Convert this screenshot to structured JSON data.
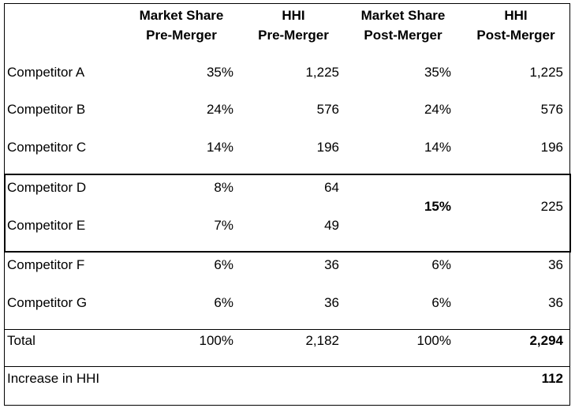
{
  "headers": [
    {
      "line1": "Market Share",
      "line2": "Pre-Merger"
    },
    {
      "line1": "HHI",
      "line2": "Pre-Merger"
    },
    {
      "line1": "Market Share",
      "line2": "Post-Merger"
    },
    {
      "line1": "HHI",
      "line2": "Post-Merger"
    }
  ],
  "rows": {
    "a": {
      "name": "Competitor A",
      "ms_pre": "35%",
      "hhi_pre": "1,225",
      "ms_post": "35%",
      "hhi_post": "1,225"
    },
    "b": {
      "name": "Competitor B",
      "ms_pre": "24%",
      "hhi_pre": "576",
      "ms_post": "24%",
      "hhi_post": "576"
    },
    "c": {
      "name": "Competitor C",
      "ms_pre": "14%",
      "hhi_pre": "196",
      "ms_post": "14%",
      "hhi_post": "196"
    },
    "d": {
      "name": "Competitor D",
      "ms_pre": "8%",
      "hhi_pre": "64"
    },
    "e": {
      "name": "Competitor E",
      "ms_pre": "7%",
      "hhi_pre": "49"
    },
    "de_merged": {
      "ms_post": "15%",
      "hhi_post": "225"
    },
    "f": {
      "name": "Competitor F",
      "ms_pre": "6%",
      "hhi_pre": "36",
      "ms_post": "6%",
      "hhi_post": "36"
    },
    "g": {
      "name": "Competitor G",
      "ms_pre": "6%",
      "hhi_pre": "36",
      "ms_post": "6%",
      "hhi_post": "36"
    }
  },
  "total": {
    "label": "Total",
    "ms_pre": "100%",
    "hhi_pre": "2,182",
    "ms_post": "100%",
    "hhi_post": "2,294"
  },
  "increase": {
    "label": "Increase in HHI",
    "value": "112"
  }
}
